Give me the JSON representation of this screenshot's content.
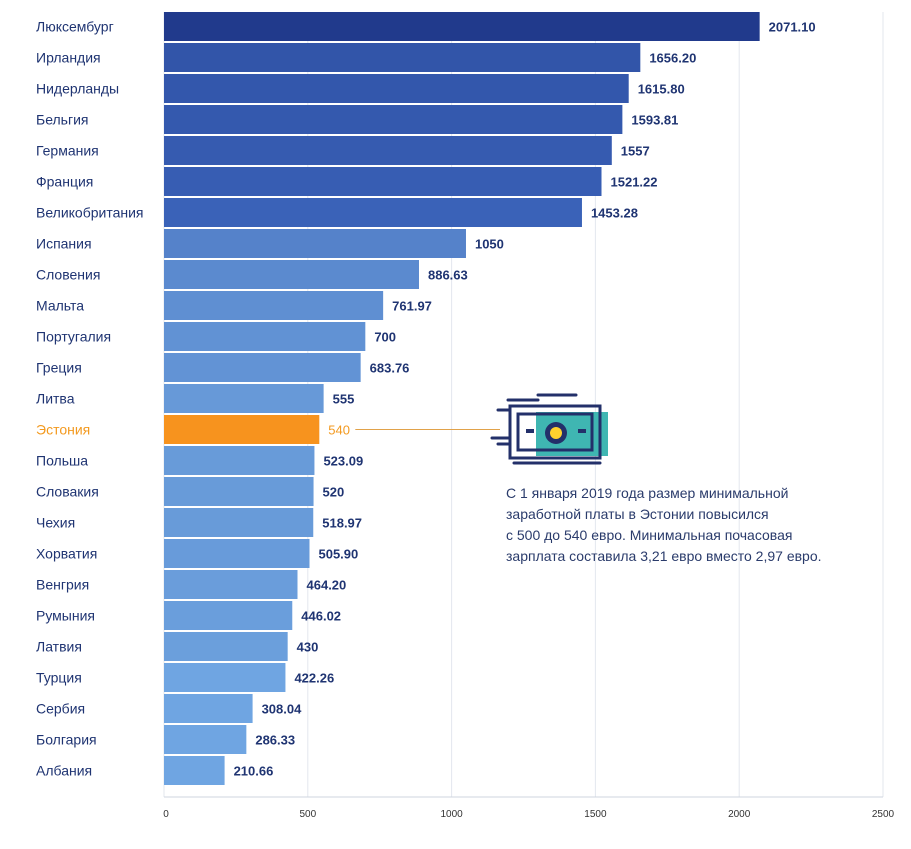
{
  "chart_data": {
    "type": "bar",
    "orientation": "horizontal",
    "categories": [
      "Люксембург",
      "Ирландия",
      "Нидерланды",
      "Бельгия",
      "Германия",
      "Франция",
      "Великобритания",
      "Испания",
      "Словения",
      "Мальта",
      "Португалия",
      "Греция",
      "Литва",
      "Эстония",
      "Польша",
      "Словакия",
      "Чехия",
      "Хорватия",
      "Венгрия",
      "Румыния",
      "Латвия",
      "Турция",
      "Сербия",
      "Болгария",
      "Албания"
    ],
    "values": [
      2071.1,
      1656.2,
      1615.8,
      1593.81,
      1557,
      1521.22,
      1453.28,
      1050,
      886.63,
      761.97,
      700,
      683.76,
      555,
      540,
      523.09,
      520,
      518.97,
      505.9,
      464.2,
      446.02,
      430,
      422.26,
      308.04,
      286.33,
      210.66
    ],
    "value_labels": [
      "2071.10",
      "1656.20",
      "1615.80",
      "1593.81",
      "1557",
      "1521.22",
      "1453.28",
      "1050",
      "886.63",
      "761.97",
      "700",
      "683.76",
      "555",
      "540",
      "523.09",
      "520",
      "518.97",
      "505.90",
      "464.20",
      "446.02",
      "430",
      "422.26",
      "308.04",
      "286.33",
      "210.66"
    ],
    "highlight": "Эстония",
    "xlim": [
      0,
      2500
    ],
    "ticks": [
      "0",
      "500",
      "1000",
      "1500",
      "2000",
      "2500"
    ],
    "grid": true,
    "colors": {
      "tier_dark": "#2c4a9e",
      "tier_mid": "#5a87cf",
      "tier_light": "#6fa5e2",
      "highlight": "#f7931e",
      "label": "#1f3472",
      "grid": "#e3e7ee"
    },
    "title": "",
    "xlabel": "",
    "ylabel": ""
  },
  "annotation": {
    "line1": "С 1 января 2019 года размер минимальной",
    "line2": "заработной платы в Эстонии повысился",
    "line3": "с 500 до 540 евро.  Минимальная почасовая",
    "line4": "зарплата составила 3,21 евро вместо 2,97 евро.",
    "icon": "money-icon"
  }
}
